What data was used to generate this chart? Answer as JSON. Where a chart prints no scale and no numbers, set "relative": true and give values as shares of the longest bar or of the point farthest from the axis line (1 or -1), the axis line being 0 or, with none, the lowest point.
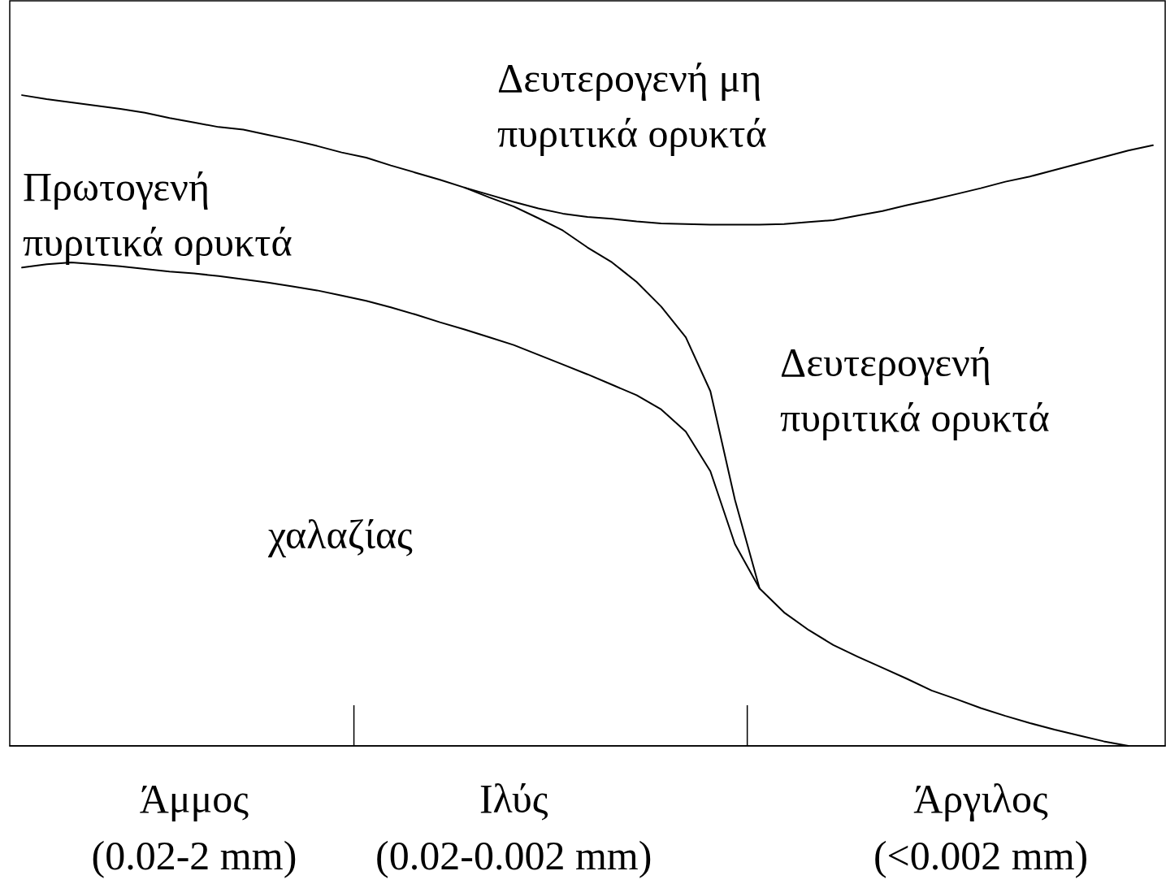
{
  "chart_data": {
    "type": "line",
    "relative": true,
    "categories": [
      null,
      null,
      null,
      null,
      null,
      null,
      null,
      "Άμμος\n(0.02-2 mm)",
      null,
      null,
      null,
      null,
      null,
      null,
      null,
      null,
      null,
      null,
      null,
      null,
      "Ιλύς\n(0.02-0.002 mm)",
      null,
      null,
      null,
      null,
      null,
      null,
      null,
      null,
      null,
      null,
      null,
      null,
      null,
      null,
      null,
      null,
      null,
      null,
      "Άργιλος\n(<0.002 mm)",
      null,
      null,
      null,
      null,
      null,
      null,
      null
    ],
    "series": [
      {
        "color": "#000000",
        "values": [
          1.0,
          0.994,
          0.989,
          0.984,
          0.979,
          0.973,
          0.965,
          0.958,
          0.951,
          0.947,
          0.939,
          0.931,
          0.922,
          0.912,
          0.904,
          0.892,
          0.881,
          0.87,
          0.858,
          0.847,
          0.836,
          0.826,
          0.818,
          0.813,
          0.81,
          0.806,
          0.803,
          0.802,
          0.801,
          0.801,
          0.801,
          0.802,
          0.805,
          0.808,
          0.815,
          0.822,
          0.831,
          0.839,
          0.848,
          0.857,
          0.867,
          0.875,
          0.885,
          0.895,
          0.905,
          0.915,
          0.923
        ]
      },
      {
        "color": "#000000",
        "values": [
          null,
          null,
          null,
          null,
          null,
          null,
          null,
          null,
          null,
          null,
          null,
          null,
          null,
          null,
          null,
          null,
          null,
          null,
          0.858,
          0.843,
          0.829,
          0.811,
          0.792,
          0.766,
          0.743,
          0.713,
          0.675,
          0.628,
          0.545,
          0.378,
          0.242,
          null,
          null,
          null,
          null,
          null,
          null,
          null,
          null,
          null,
          null,
          null,
          null,
          null,
          null,
          null,
          null
        ]
      },
      {
        "color": "#000000",
        "values": [
          0.735,
          0.74,
          0.743,
          0.74,
          0.737,
          0.733,
          0.729,
          0.726,
          0.722,
          0.717,
          0.712,
          0.706,
          0.7,
          0.692,
          0.684,
          0.674,
          0.663,
          0.651,
          0.64,
          0.628,
          0.616,
          0.601,
          0.586,
          0.571,
          0.555,
          0.539,
          0.517,
          0.483,
          0.422,
          0.31,
          0.242,
          0.205,
          0.178,
          0.155,
          0.137,
          0.12,
          0.103,
          0.085,
          0.072,
          0.058,
          0.046,
          0.035,
          0.025,
          0.016,
          0.007,
          0,
          null
        ]
      }
    ],
    "annotations": [
      "Δευτερογενή μη\nπυριτικά ορυκτά",
      "Πρωτογενή\nπυριτικά ορυκτά",
      "Δευτερογενή\nπυριτικά ορυκτά",
      "χαλαζίας"
    ],
    "marker": "none",
    "line_style": "solid",
    "grid": false
  }
}
